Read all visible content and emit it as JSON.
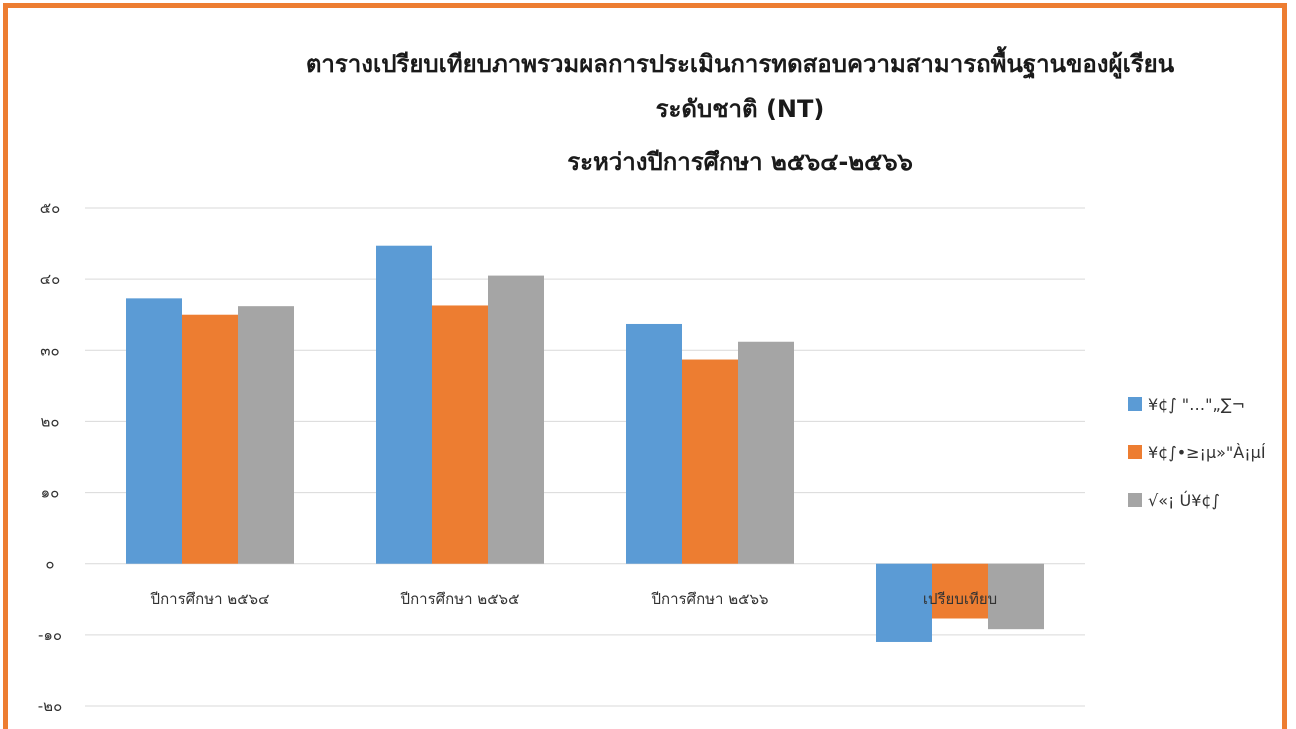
{
  "chart_data": {
    "type": "bar",
    "title_lines": [
      "ตารางเปรียบเทียบภาพรวมผลการประเมินการทดสอบความสามารถพื้นฐานของผู้เรียน",
      "ระดับชาติ (NT)",
      "ระหว่างปีการศึกษา ๒๕๖๔-๒๕๖๖"
    ],
    "categories": [
      "ปีการศึกษา ๒๕๖๔",
      "ปีการศึกษา ๒๕๖๕",
      "ปีการศึกษา ๒๕๖๖",
      "เปรียบเทียบ"
    ],
    "series": [
      {
        "name": "¥¢∫ \"…\"„∑¬",
        "color": "#5B9BD5",
        "values": [
          37.3,
          44.7,
          33.7,
          -11.0
        ]
      },
      {
        "name": "¥¢∫•≥¡µ»\"À¡µÍ",
        "color": "#ED7D31",
        "values": [
          35.0,
          36.3,
          28.7,
          -7.7
        ]
      },
      {
        "name": "√«¡ Ú¥¢∫",
        "color": "#A5A5A5",
        "values": [
          36.2,
          40.5,
          31.2,
          -9.2
        ]
      }
    ],
    "ylim": [
      -20,
      50
    ],
    "yticks": [
      50,
      40,
      30,
      20,
      10,
      0,
      -10,
      -20
    ],
    "ytick_labels": [
      "๕๐",
      "๔๐",
      "๓๐",
      "๒๐",
      "๑๐",
      "๐",
      "-๑๐",
      "-๒๐"
    ],
    "grid": true,
    "legend": "right"
  }
}
